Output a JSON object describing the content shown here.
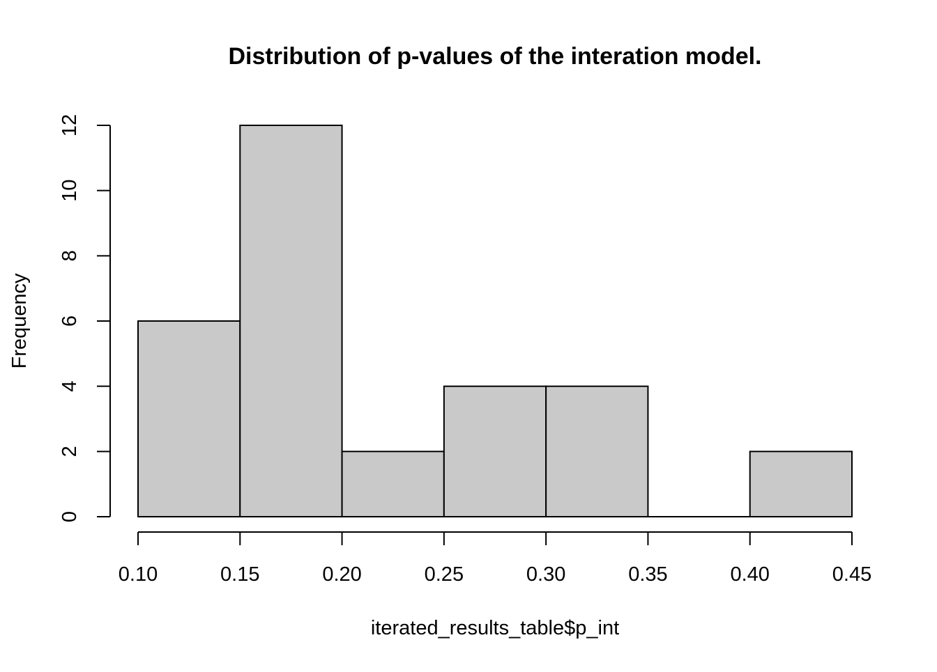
{
  "chart_data": {
    "type": "bar",
    "subtype": "histogram",
    "title": "Distribution of p-values of the interation model.",
    "xlabel": "iterated_results_table$p_int",
    "ylabel": "Frequency",
    "bins": [
      {
        "start": 0.1,
        "end": 0.15,
        "count": 6
      },
      {
        "start": 0.15,
        "end": 0.2,
        "count": 12
      },
      {
        "start": 0.2,
        "end": 0.25,
        "count": 2
      },
      {
        "start": 0.25,
        "end": 0.3,
        "count": 4
      },
      {
        "start": 0.3,
        "end": 0.35,
        "count": 4
      },
      {
        "start": 0.35,
        "end": 0.4,
        "count": 0
      },
      {
        "start": 0.4,
        "end": 0.45,
        "count": 2
      }
    ],
    "xlim": [
      0.1,
      0.45
    ],
    "ylim": [
      0,
      12
    ],
    "x_ticks": [
      "0.10",
      "0.15",
      "0.20",
      "0.25",
      "0.30",
      "0.35",
      "0.40",
      "0.45"
    ],
    "y_ticks": [
      "0",
      "2",
      "4",
      "6",
      "8",
      "10",
      "12"
    ],
    "grid": false,
    "legend": "none",
    "bar_fill": "#c9c9c9",
    "bar_stroke": "#000000"
  }
}
